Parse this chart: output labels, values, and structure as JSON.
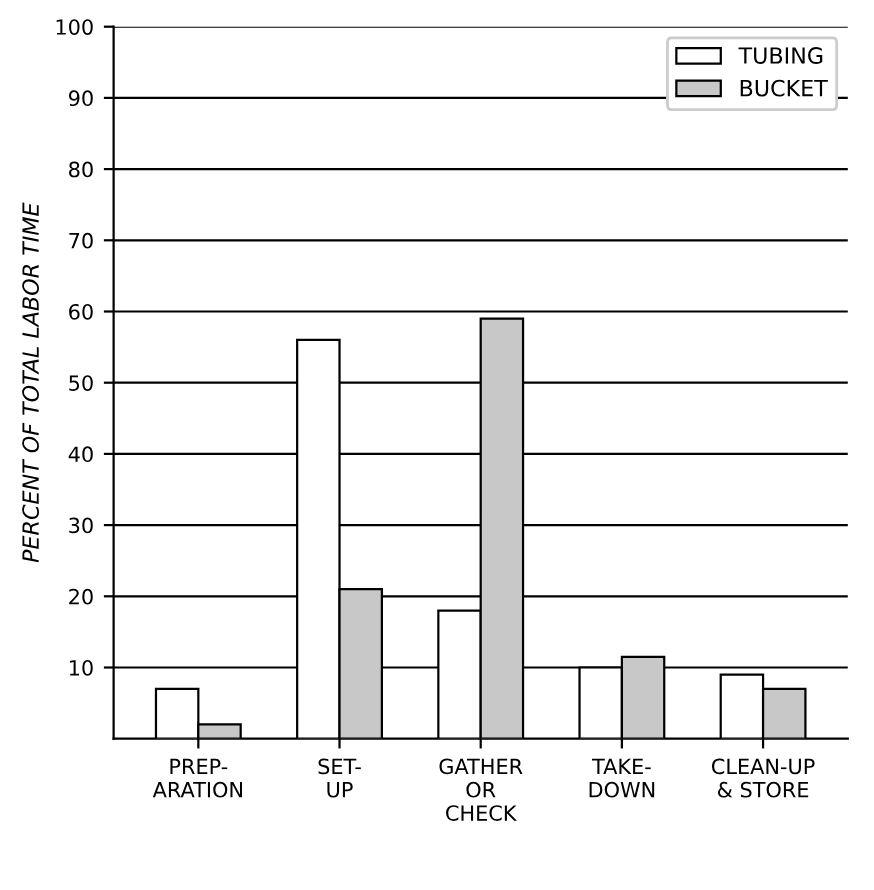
{
  "chart_data": {
    "type": "bar",
    "ylabel": "PERCENT OF TOTAL LABOR TIME",
    "categories": [
      "PREP-\nARATION",
      "SET-\nUP",
      "GATHER\nOR\nCHECK",
      "TAKE-\nDOWN",
      "CLEAN-UP\n& STORE"
    ],
    "series": [
      {
        "name": "TUBING",
        "color": "#ffffff",
        "values": [
          7,
          56,
          18,
          10,
          9
        ]
      },
      {
        "name": "BUCKET",
        "color": "#c8c8c8",
        "values": [
          2,
          21,
          59,
          11.5,
          7
        ]
      }
    ],
    "ylim": [
      0,
      100
    ],
    "yticks": [
      10,
      20,
      30,
      40,
      50,
      60,
      70,
      80,
      90,
      100
    ],
    "grid": "y",
    "legend": "top right"
  }
}
